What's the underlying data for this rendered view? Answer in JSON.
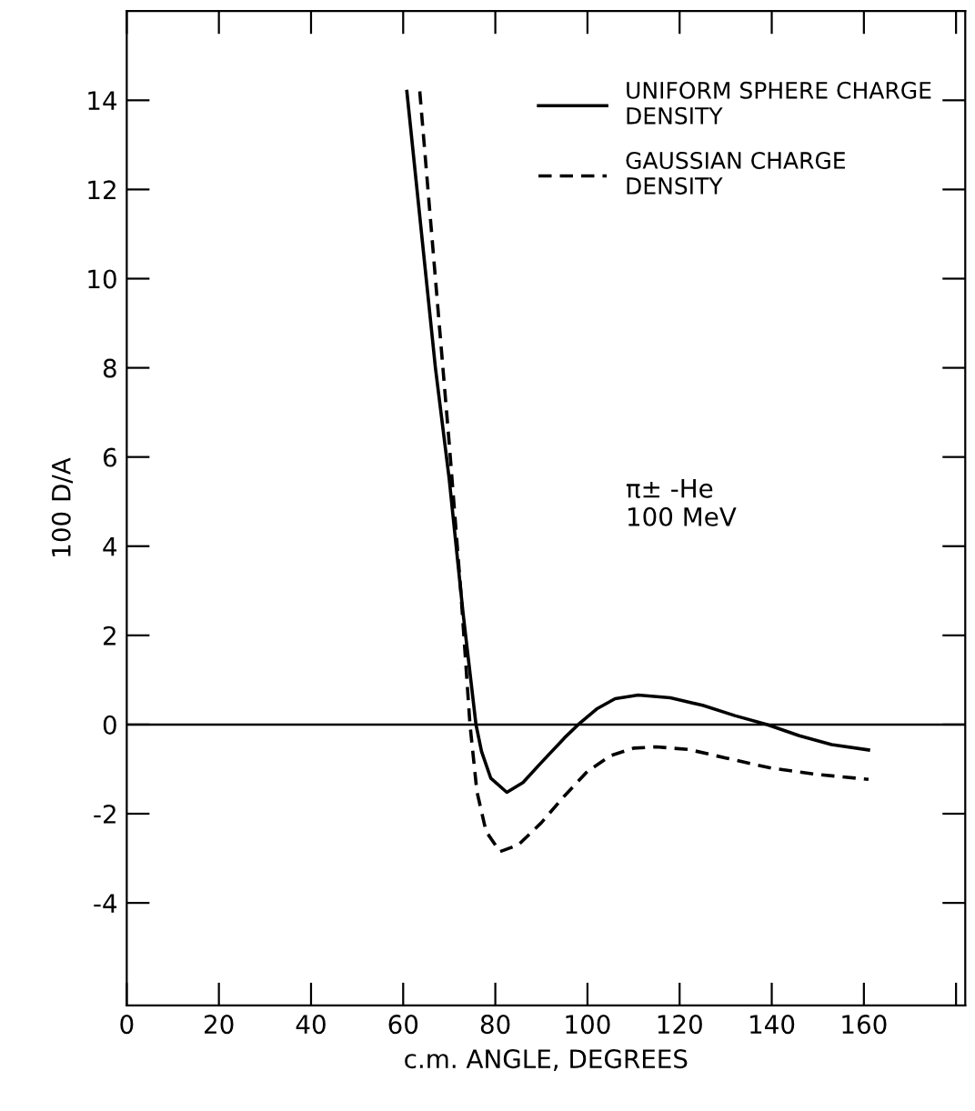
{
  "chart_data": {
    "type": "line",
    "xlabel": "c.m. ANGLE, DEGREES",
    "ylabel": "100 D/A",
    "xlim": [
      0,
      182
    ],
    "ylim": [
      -6.3,
      16
    ],
    "xticks": [
      0,
      20,
      40,
      60,
      80,
      100,
      120,
      140,
      160,
      {
        "value": 180,
        "label": null
      }
    ],
    "yticks": [
      -4,
      -2,
      0,
      2,
      4,
      6,
      8,
      10,
      12,
      14
    ],
    "legend": "top right",
    "grid": false,
    "annotations": [
      "π± -He\n100 MeV"
    ],
    "ref_lines": [
      {
        "axis": "y",
        "value": 0,
        "color": "#000000",
        "line_style": "solid"
      }
    ],
    "series": [
      {
        "name": "UNIFORM SPHERE CHARGE DENSITY",
        "color": "#000000",
        "line_style": "solid",
        "x": [
          60.8,
          64,
          67,
          70,
          73,
          75.8,
          77,
          79,
          82.5,
          86,
          90,
          95,
          98,
          102,
          106,
          111,
          118,
          125,
          132,
          139,
          146,
          153,
          161
        ],
        "values": [
          14.2,
          11,
          8,
          5.5,
          2.5,
          0,
          -0.6,
          -1.2,
          -1.52,
          -1.3,
          -0.85,
          -0.3,
          0,
          0.35,
          0.58,
          0.66,
          0.6,
          0.43,
          0.2,
          0,
          -0.25,
          -0.45,
          -0.57
        ]
      },
      {
        "name": "GAUSSIAN CHARGE DENSITY",
        "color": "#000000",
        "line_style": "dashed",
        "x": [
          63.6,
          67,
          70,
          72.5,
          74.5,
          76,
          78,
          81,
          85,
          90,
          95,
          100,
          105,
          110,
          115,
          122,
          130,
          140,
          150,
          161
        ],
        "values": [
          14.2,
          10,
          6.3,
          3,
          0,
          -1.5,
          -2.4,
          -2.85,
          -2.7,
          -2.2,
          -1.6,
          -1.05,
          -0.7,
          -0.53,
          -0.5,
          -0.56,
          -0.75,
          -0.98,
          -1.12,
          -1.23
        ]
      }
    ]
  }
}
